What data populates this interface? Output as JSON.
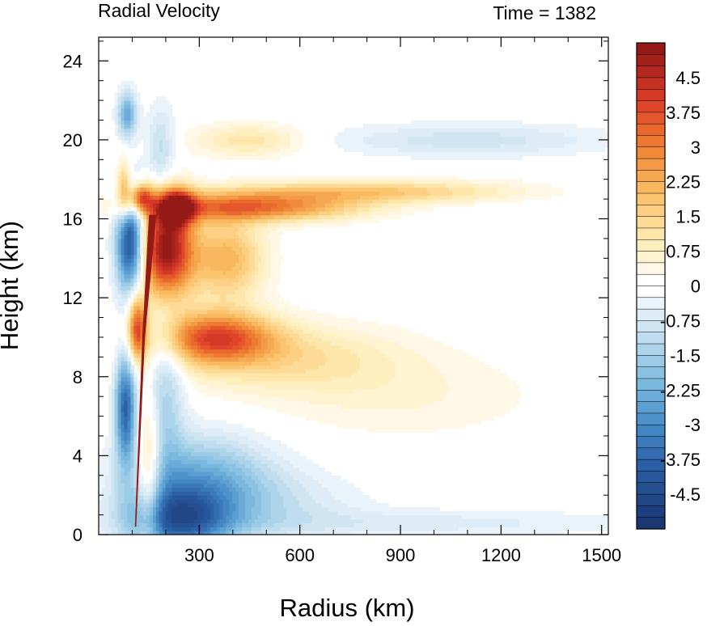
{
  "chart_data": {
    "type": "heatmap",
    "title": "Radial Velocity",
    "subtitle": "Time = 1382",
    "xlabel": "Radius (km)",
    "ylabel": "Height (km)",
    "xlim": [
      0,
      1520
    ],
    "ylim": [
      0,
      25.2
    ],
    "xticks": [
      300,
      600,
      900,
      1200,
      1500
    ],
    "xtick_labels": [
      "300",
      "600",
      "900",
      "1200",
      "1500"
    ],
    "yticks": [
      0,
      4,
      8,
      12,
      16,
      20,
      24
    ],
    "ytick_labels": [
      "0",
      "4",
      "8",
      "12",
      "16",
      "20",
      "24"
    ],
    "colorbar": {
      "min": -5.25,
      "max": 5.25,
      "step": 0.25,
      "label_values": [
        4.5,
        3.75,
        3,
        2.25,
        1.5,
        0.75,
        0,
        -0.75,
        -1.5,
        -2.25,
        -3,
        -3.75,
        -4.5
      ],
      "labels": [
        "4.5",
        "3.75",
        "3",
        "2.25",
        "1.5",
        "0.75",
        "0",
        "-0.75",
        "-1.5",
        "-2.25",
        "-3",
        "-3.75",
        "-4.5"
      ]
    },
    "features": [
      {
        "r": 200,
        "z": 14.5,
        "sr": 55,
        "sz": 1.8,
        "v": 5.2
      },
      {
        "r": 235,
        "z": 16.6,
        "sr": 35,
        "sz": 0.6,
        "v": 4.0
      },
      {
        "r": 125,
        "z": 17.1,
        "sr": 25,
        "sz": 0.5,
        "v": 3.5
      },
      {
        "r": 450,
        "z": 16.6,
        "sr": 220,
        "sz": 0.5,
        "v": 3.2
      },
      {
        "r": 800,
        "z": 17.4,
        "sr": 300,
        "sz": 0.4,
        "v": 1.8
      },
      {
        "r": 380,
        "z": 14.0,
        "sr": 80,
        "sz": 1.5,
        "v": 2.2
      },
      {
        "r": 350,
        "z": 10.0,
        "sr": 120,
        "sz": 0.9,
        "v": 3.5
      },
      {
        "r": 550,
        "z": 9.0,
        "sr": 250,
        "sz": 1.2,
        "v": 1.2
      },
      {
        "r": 450,
        "z": 20.0,
        "sr": 120,
        "sz": 0.6,
        "v": 1.2
      },
      {
        "r": 900,
        "z": 7.0,
        "sr": 300,
        "sz": 1.5,
        "v": 0.5
      },
      {
        "r": 115,
        "z": 10.5,
        "sr": 20,
        "sz": 1.2,
        "v": 3.6
      },
      {
        "r": 75,
        "z": 17.5,
        "sr": 15,
        "sz": 1.0,
        "v": 2.5
      },
      {
        "r": 150,
        "z": 3.0,
        "sr": 25,
        "sz": 2.5,
        "v": 2.0
      },
      {
        "r": 95,
        "z": 14.8,
        "sr": 30,
        "sz": 1.8,
        "v": -4.8
      },
      {
        "r": 80,
        "z": 6.5,
        "sr": 22,
        "sz": 2.0,
        "v": -3.8
      },
      {
        "r": 240,
        "z": 0.7,
        "sr": 110,
        "sz": 1.2,
        "v": -3.5
      },
      {
        "r": 300,
        "z": 3.0,
        "sr": 150,
        "sz": 1.5,
        "v": -2.0
      },
      {
        "r": 200,
        "z": 7.5,
        "sr": 40,
        "sz": 3.0,
        "v": -1.5
      },
      {
        "r": 480,
        "z": 1.5,
        "sr": 200,
        "sz": 1.2,
        "v": -0.9
      },
      {
        "r": 1100,
        "z": 20.0,
        "sr": 300,
        "sz": 0.6,
        "v": -0.9
      },
      {
        "r": 85,
        "z": 21.3,
        "sr": 20,
        "sz": 0.8,
        "v": -2.5
      },
      {
        "r": 1000,
        "z": 0.6,
        "sr": 450,
        "sz": 0.5,
        "v": -0.6
      },
      {
        "r": 185,
        "z": 19.5,
        "sr": 30,
        "sz": 1.5,
        "v": -1.2
      }
    ]
  }
}
